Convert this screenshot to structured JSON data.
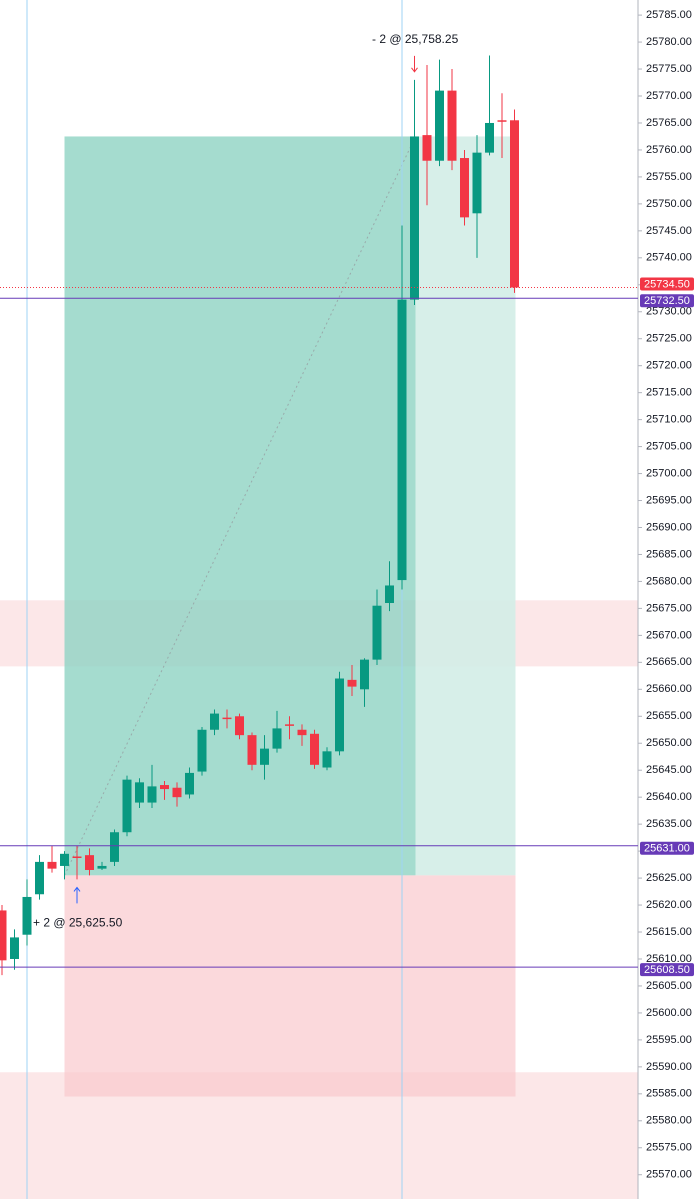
{
  "chart_data": {
    "type": "candlestick",
    "categories": [
      null,
      null,
      null,
      null,
      null,
      null,
      null,
      null,
      null,
      null,
      null,
      null,
      null,
      null,
      null,
      null,
      null,
      null,
      null,
      null,
      null,
      null,
      null,
      null,
      null,
      null,
      null,
      null,
      null,
      null,
      null,
      null,
      null,
      null,
      null,
      null,
      null,
      null,
      null,
      null,
      null,
      null
    ],
    "open": [
      25619,
      25610,
      25614.5,
      25622,
      25628,
      25627.25,
      25629,
      25629.25,
      25626.75,
      25628,
      25633.5,
      25639,
      25639,
      25642.25,
      25641.75,
      25640.5,
      25644.75,
      25652.5,
      25654.75,
      25655,
      25651.5,
      25646,
      25649,
      25653.5,
      25652.5,
      25651.75,
      25645.5,
      25648.5,
      25661.75,
      25660,
      25665.5,
      25676,
      25680.25,
      25732.25,
      25762.75,
      25758,
      25771,
      25758.5,
      25748.25,
      25759.5,
      25765.5,
      25765.5
    ],
    "high": [
      25620,
      25615.5,
      25624.75,
      25629.25,
      25631,
      25630,
      25631,
      25630.5,
      25628,
      25634,
      25644,
      25643.5,
      25646,
      25643,
      25642.75,
      25645.5,
      25653,
      25656.25,
      25656.25,
      25655.5,
      25652,
      25651.5,
      25656,
      25655,
      25653.5,
      25652.5,
      25649.25,
      25663.25,
      25664.5,
      25665.75,
      25678.5,
      25683.75,
      25746,
      25773,
      25775.75,
      25776.75,
      25775,
      25760,
      25762.75,
      25777.5,
      25770.5,
      25767.5
    ],
    "low": [
      25607,
      25608,
      25612.5,
      25621,
      25626,
      25624.75,
      25624.75,
      25625.5,
      25626.5,
      25627.25,
      25632.75,
      25638,
      25638,
      25639.5,
      25638.25,
      25639.75,
      25644,
      25651.5,
      25652.75,
      25650.75,
      25645,
      25643.25,
      25648.25,
      25650.75,
      25649.5,
      25645.25,
      25645,
      25647.75,
      25658.75,
      25656.75,
      25664.5,
      25674.5,
      25678.5,
      25731.25,
      25749.75,
      25757,
      25756.25,
      25746,
      25740,
      25759,
      25758.5,
      25733.5
    ],
    "close": [
      25609.75,
      25614,
      25621.5,
      25628,
      25626.75,
      25629.5,
      25628.75,
      25626.5,
      25627.25,
      25633.5,
      25643.25,
      25642.75,
      25642,
      25641.5,
      25640,
      25644.5,
      25652.5,
      25655.5,
      25654.5,
      25651.5,
      25646,
      25649,
      25652.75,
      25653.25,
      25651.5,
      25646,
      25648.5,
      25662,
      25660.5,
      25665.5,
      25675.5,
      25679.25,
      25732.25,
      25762.5,
      25758,
      25771,
      25758,
      25747.5,
      25759.5,
      25765,
      25765.25,
      25734.5
    ],
    "up_color": "#089981",
    "down_color": "#f23645",
    "ylim": [
      25565.5,
      25787.8
    ],
    "yticks": [
      {
        "value": 25570,
        "label": "25570.00"
      },
      {
        "value": 25575,
        "label": "25575.00"
      },
      {
        "value": 25580,
        "label": "25580.00"
      },
      {
        "value": 25585,
        "label": "25585.00"
      },
      {
        "value": 25590,
        "label": "25590.00"
      },
      {
        "value": 25595,
        "label": "25595.00"
      },
      {
        "value": 25600,
        "label": "25600.00"
      },
      {
        "value": 25605,
        "label": "25605.00"
      },
      {
        "value": 25610,
        "label": "25610.00"
      },
      {
        "value": 25615,
        "label": "25615.00"
      },
      {
        "value": 25620,
        "label": "25620.00"
      },
      {
        "value": 25625,
        "label": "25625.00"
      },
      {
        "value": 25630,
        "label": "25630.00"
      },
      {
        "value": 25635,
        "label": "25635.00"
      },
      {
        "value": 25640,
        "label": "25640.00"
      },
      {
        "value": 25645,
        "label": "25645.00"
      },
      {
        "value": 25650,
        "label": "25650.00"
      },
      {
        "value": 25655,
        "label": "25655.00"
      },
      {
        "value": 25660,
        "label": "25660.00"
      },
      {
        "value": 25665,
        "label": "25665.00"
      },
      {
        "value": 25670,
        "label": "25670.00"
      },
      {
        "value": 25675,
        "label": "25675.00"
      },
      {
        "value": 25680,
        "label": "25680.00"
      },
      {
        "value": 25685,
        "label": "25685.00"
      },
      {
        "value": 25690,
        "label": "25690.00"
      },
      {
        "value": 25695,
        "label": "25695.00"
      },
      {
        "value": 25700,
        "label": "25700.00"
      },
      {
        "value": 25705,
        "label": "25705.00"
      },
      {
        "value": 25710,
        "label": "25710.00"
      },
      {
        "value": 25715,
        "label": "25715.00"
      },
      {
        "value": 25720,
        "label": "25720.00"
      },
      {
        "value": 25725,
        "label": "25725.00"
      },
      {
        "value": 25730,
        "label": "25730.00"
      },
      {
        "value": 25735,
        "label": "25735.00"
      },
      {
        "value": 25740,
        "label": "25740.00"
      },
      {
        "value": 25745,
        "label": "25745.00"
      },
      {
        "value": 25750,
        "label": "25750.00"
      },
      {
        "value": 25755,
        "label": "25755.00"
      },
      {
        "value": 25760,
        "label": "25760.00"
      },
      {
        "value": 25765,
        "label": "25765.00"
      },
      {
        "value": 25770,
        "label": "25770.00"
      },
      {
        "value": 25775,
        "label": "25775.00"
      },
      {
        "value": 25780,
        "label": "25780.00"
      },
      {
        "value": 25785,
        "label": "25785.00"
      }
    ],
    "zones": [
      {
        "from": 25664.25,
        "to": 25676.5,
        "color": "#fce4e6"
      },
      {
        "from": 25565.5,
        "to": 25589,
        "color": "#fce4e6"
      }
    ],
    "position": {
      "target": 25762.5,
      "entry": 25625.5,
      "stop": 25584.5,
      "profit_color": "#8fd3c3",
      "profit_light": "#d3ede7",
      "loss_color": "#f9c9cd"
    },
    "price_lines": [
      {
        "value": 25734.5,
        "label": "25734.50",
        "color": "#f23645",
        "style": "dotted"
      },
      {
        "value": 25732.5,
        "label": "25732.50",
        "color": "#673ab7",
        "style": "solid"
      },
      {
        "value": 25631,
        "label": "25631.00",
        "color": "#673ab7",
        "style": "solid"
      },
      {
        "value": 25608.5,
        "label": "25608.50",
        "color": "#673ab7",
        "style": "solid"
      }
    ],
    "trades": [
      {
        "label": "+ 2 @ 25,625.50",
        "price": 25625.5,
        "side": "buy",
        "color": "#2962ff"
      },
      {
        "label": "- 2 @ 25,758.25",
        "price": 25758.25,
        "side": "sell",
        "color": "#f23645"
      }
    ]
  }
}
